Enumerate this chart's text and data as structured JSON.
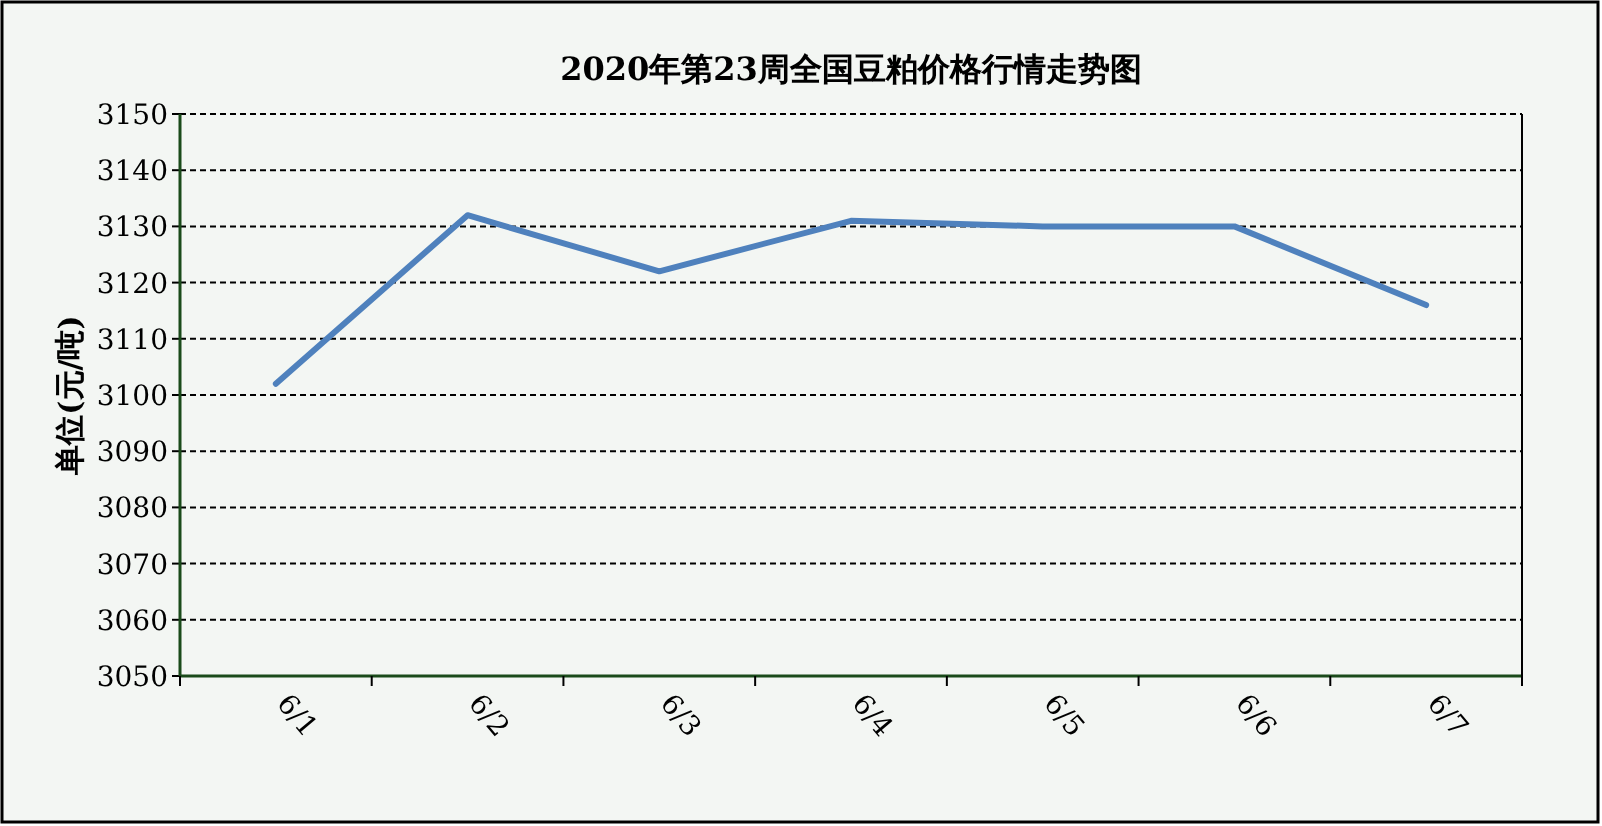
{
  "chart_data": {
    "type": "line",
    "title": "2020年第23周全国豆粕价格行情走势图",
    "ylabel": "单位(元/吨)",
    "categories": [
      "6/1",
      "6/2",
      "6/3",
      "6/4",
      "6/5",
      "6/6",
      "6/7"
    ],
    "series": [
      {
        "color": "#4f81bd",
        "values": [
          3102,
          3132,
          3122,
          3131,
          3130,
          3130,
          3116
        ]
      }
    ],
    "ylim": [
      3050,
      3150
    ],
    "yticks": [
      3050,
      3060,
      3070,
      3080,
      3090,
      3100,
      3110,
      3120,
      3130,
      3140,
      3150
    ],
    "grid": "y",
    "marker": "none",
    "line_style": "solid"
  }
}
